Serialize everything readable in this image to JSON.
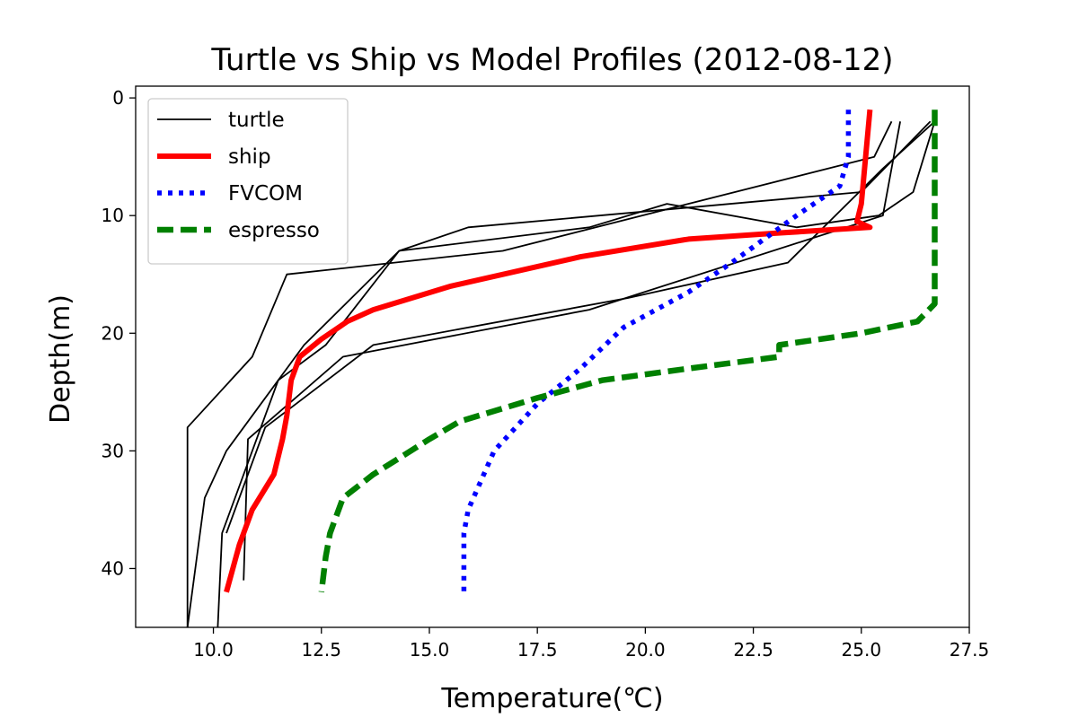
{
  "chart_data": {
    "type": "line",
    "title": "Turtle vs Ship vs Model Profiles (2012-08-12)",
    "xlabel": "Temperature(℃)",
    "ylabel": "Depth(m)",
    "xlim": [
      8.2,
      27.5
    ],
    "ylim": [
      45,
      -1
    ],
    "y_inverted": true,
    "xticks": [
      10.0,
      12.5,
      15.0,
      17.5,
      20.0,
      22.5,
      25.0,
      27.5
    ],
    "xtick_labels": [
      "10.0",
      "12.5",
      "15.0",
      "17.5",
      "20.0",
      "22.5",
      "25.0",
      "27.5"
    ],
    "yticks": [
      0,
      10,
      20,
      30,
      40
    ],
    "ytick_labels": [
      "0",
      "10",
      "20",
      "30",
      "40"
    ],
    "grid": false,
    "legend_position": "top-left",
    "series": [
      {
        "name": "turtle",
        "legend": true,
        "color": "#000000",
        "style": "solid",
        "points": [
          [
            25.7,
            2
          ],
          [
            25.3,
            5
          ],
          [
            16.7,
            13
          ],
          [
            11.7,
            15
          ],
          [
            10.9,
            22
          ],
          [
            9.4,
            28
          ],
          [
            9.4,
            45
          ]
        ]
      },
      {
        "name": "turtle",
        "legend": false,
        "color": "#000000",
        "style": "solid",
        "points": [
          [
            25.9,
            2
          ],
          [
            25.5,
            10
          ],
          [
            18.7,
            18
          ],
          [
            13.0,
            22
          ],
          [
            10.8,
            29
          ],
          [
            10.7,
            41
          ]
        ]
      },
      {
        "name": "turtle",
        "legend": false,
        "color": "#000000",
        "style": "solid",
        "points": [
          [
            26.6,
            2
          ],
          [
            25.0,
            8
          ],
          [
            15.9,
            11
          ],
          [
            14.3,
            13
          ],
          [
            12.6,
            21
          ],
          [
            11.5,
            24
          ],
          [
            10.2,
            37
          ],
          [
            10.1,
            45
          ]
        ]
      },
      {
        "name": "turtle",
        "legend": false,
        "color": "#000000",
        "style": "solid",
        "points": [
          [
            26.7,
            2
          ],
          [
            26.2,
            8
          ],
          [
            25.4,
            10
          ],
          [
            23.5,
            11
          ],
          [
            20.5,
            9
          ],
          [
            18.7,
            11
          ],
          [
            14.3,
            13
          ],
          [
            12.1,
            21
          ],
          [
            11.3,
            25
          ],
          [
            10.3,
            30
          ],
          [
            9.8,
            34
          ],
          [
            9.4,
            45
          ]
        ]
      },
      {
        "name": "turtle",
        "legend": false,
        "color": "#000000",
        "style": "solid",
        "points": [
          [
            26.7,
            2
          ],
          [
            25.5,
            6
          ],
          [
            23.3,
            14
          ],
          [
            19.6,
            17
          ],
          [
            13.7,
            21
          ],
          [
            11.2,
            28
          ],
          [
            10.3,
            37
          ]
        ]
      },
      {
        "name": "ship",
        "legend": true,
        "color": "#ff0000",
        "style": "solid",
        "points": [
          [
            25.2,
            1
          ],
          [
            25.1,
            5
          ],
          [
            25.0,
            9
          ],
          [
            24.9,
            10.5
          ],
          [
            25.2,
            11
          ],
          [
            23.0,
            11.5
          ],
          [
            21.0,
            12
          ],
          [
            18.5,
            13.5
          ],
          [
            15.5,
            16
          ],
          [
            13.7,
            18
          ],
          [
            13.1,
            19
          ],
          [
            12.5,
            20.5
          ],
          [
            12.0,
            22
          ],
          [
            11.8,
            24
          ],
          [
            11.7,
            27
          ],
          [
            11.6,
            29
          ],
          [
            11.4,
            32
          ],
          [
            10.9,
            35
          ],
          [
            10.6,
            38
          ],
          [
            10.3,
            42
          ]
        ]
      },
      {
        "name": "FVCOM",
        "legend": true,
        "color": "#0000ff",
        "style": "dotted",
        "points": [
          [
            24.7,
            1
          ],
          [
            24.7,
            5
          ],
          [
            24.5,
            7.5
          ],
          [
            23.5,
            10
          ],
          [
            22.0,
            14
          ],
          [
            21.0,
            16.5
          ],
          [
            19.5,
            19.5
          ],
          [
            18.5,
            23
          ],
          [
            17.5,
            26
          ],
          [
            16.5,
            30
          ],
          [
            15.9,
            35
          ],
          [
            15.8,
            37
          ],
          [
            15.8,
            42
          ]
        ]
      },
      {
        "name": "espresso",
        "legend": true,
        "color": "#008000",
        "style": "dashed",
        "points": [
          [
            26.7,
            1
          ],
          [
            26.7,
            17.5
          ],
          [
            26.3,
            19
          ],
          [
            25.0,
            20
          ],
          [
            23.1,
            21
          ],
          [
            23.1,
            22
          ],
          [
            21.0,
            23
          ],
          [
            19.0,
            24
          ],
          [
            17.5,
            25.5
          ],
          [
            15.7,
            27.5
          ],
          [
            15.0,
            29
          ],
          [
            13.7,
            32
          ],
          [
            13.0,
            34
          ],
          [
            12.8,
            36
          ],
          [
            12.7,
            37
          ],
          [
            12.6,
            39
          ],
          [
            12.5,
            42
          ]
        ]
      }
    ]
  }
}
